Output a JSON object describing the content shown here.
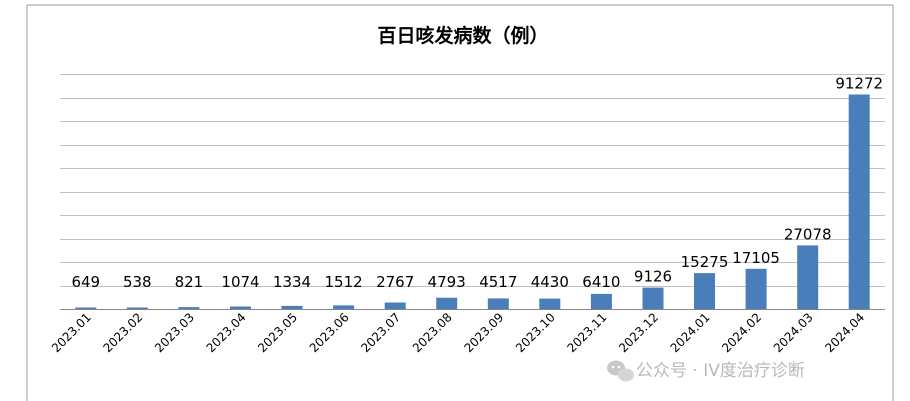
{
  "chart_data": {
    "type": "bar",
    "title": "百日咳发病数（例）",
    "categories": [
      "2023.01",
      "2023.02",
      "2023.03",
      "2023.04",
      "2023.05",
      "2023.06",
      "2023.07",
      "2023.08",
      "2023.09",
      "2023.10",
      "2023.11",
      "2023.12",
      "2024.01",
      "2024.02",
      "2024.03",
      "2024.04"
    ],
    "values": [
      649,
      538,
      821,
      1074,
      1334,
      1512,
      2767,
      4793,
      4517,
      4430,
      6410,
      9126,
      15275,
      17105,
      27078,
      91272
    ],
    "ylim": [
      0,
      100000
    ],
    "grid": true,
    "legend": "none",
    "bar_color": "#4a7ebb"
  },
  "watermark": {
    "text": "公众号 · IV度治疗诊断",
    "icon": "wechat-icon"
  }
}
